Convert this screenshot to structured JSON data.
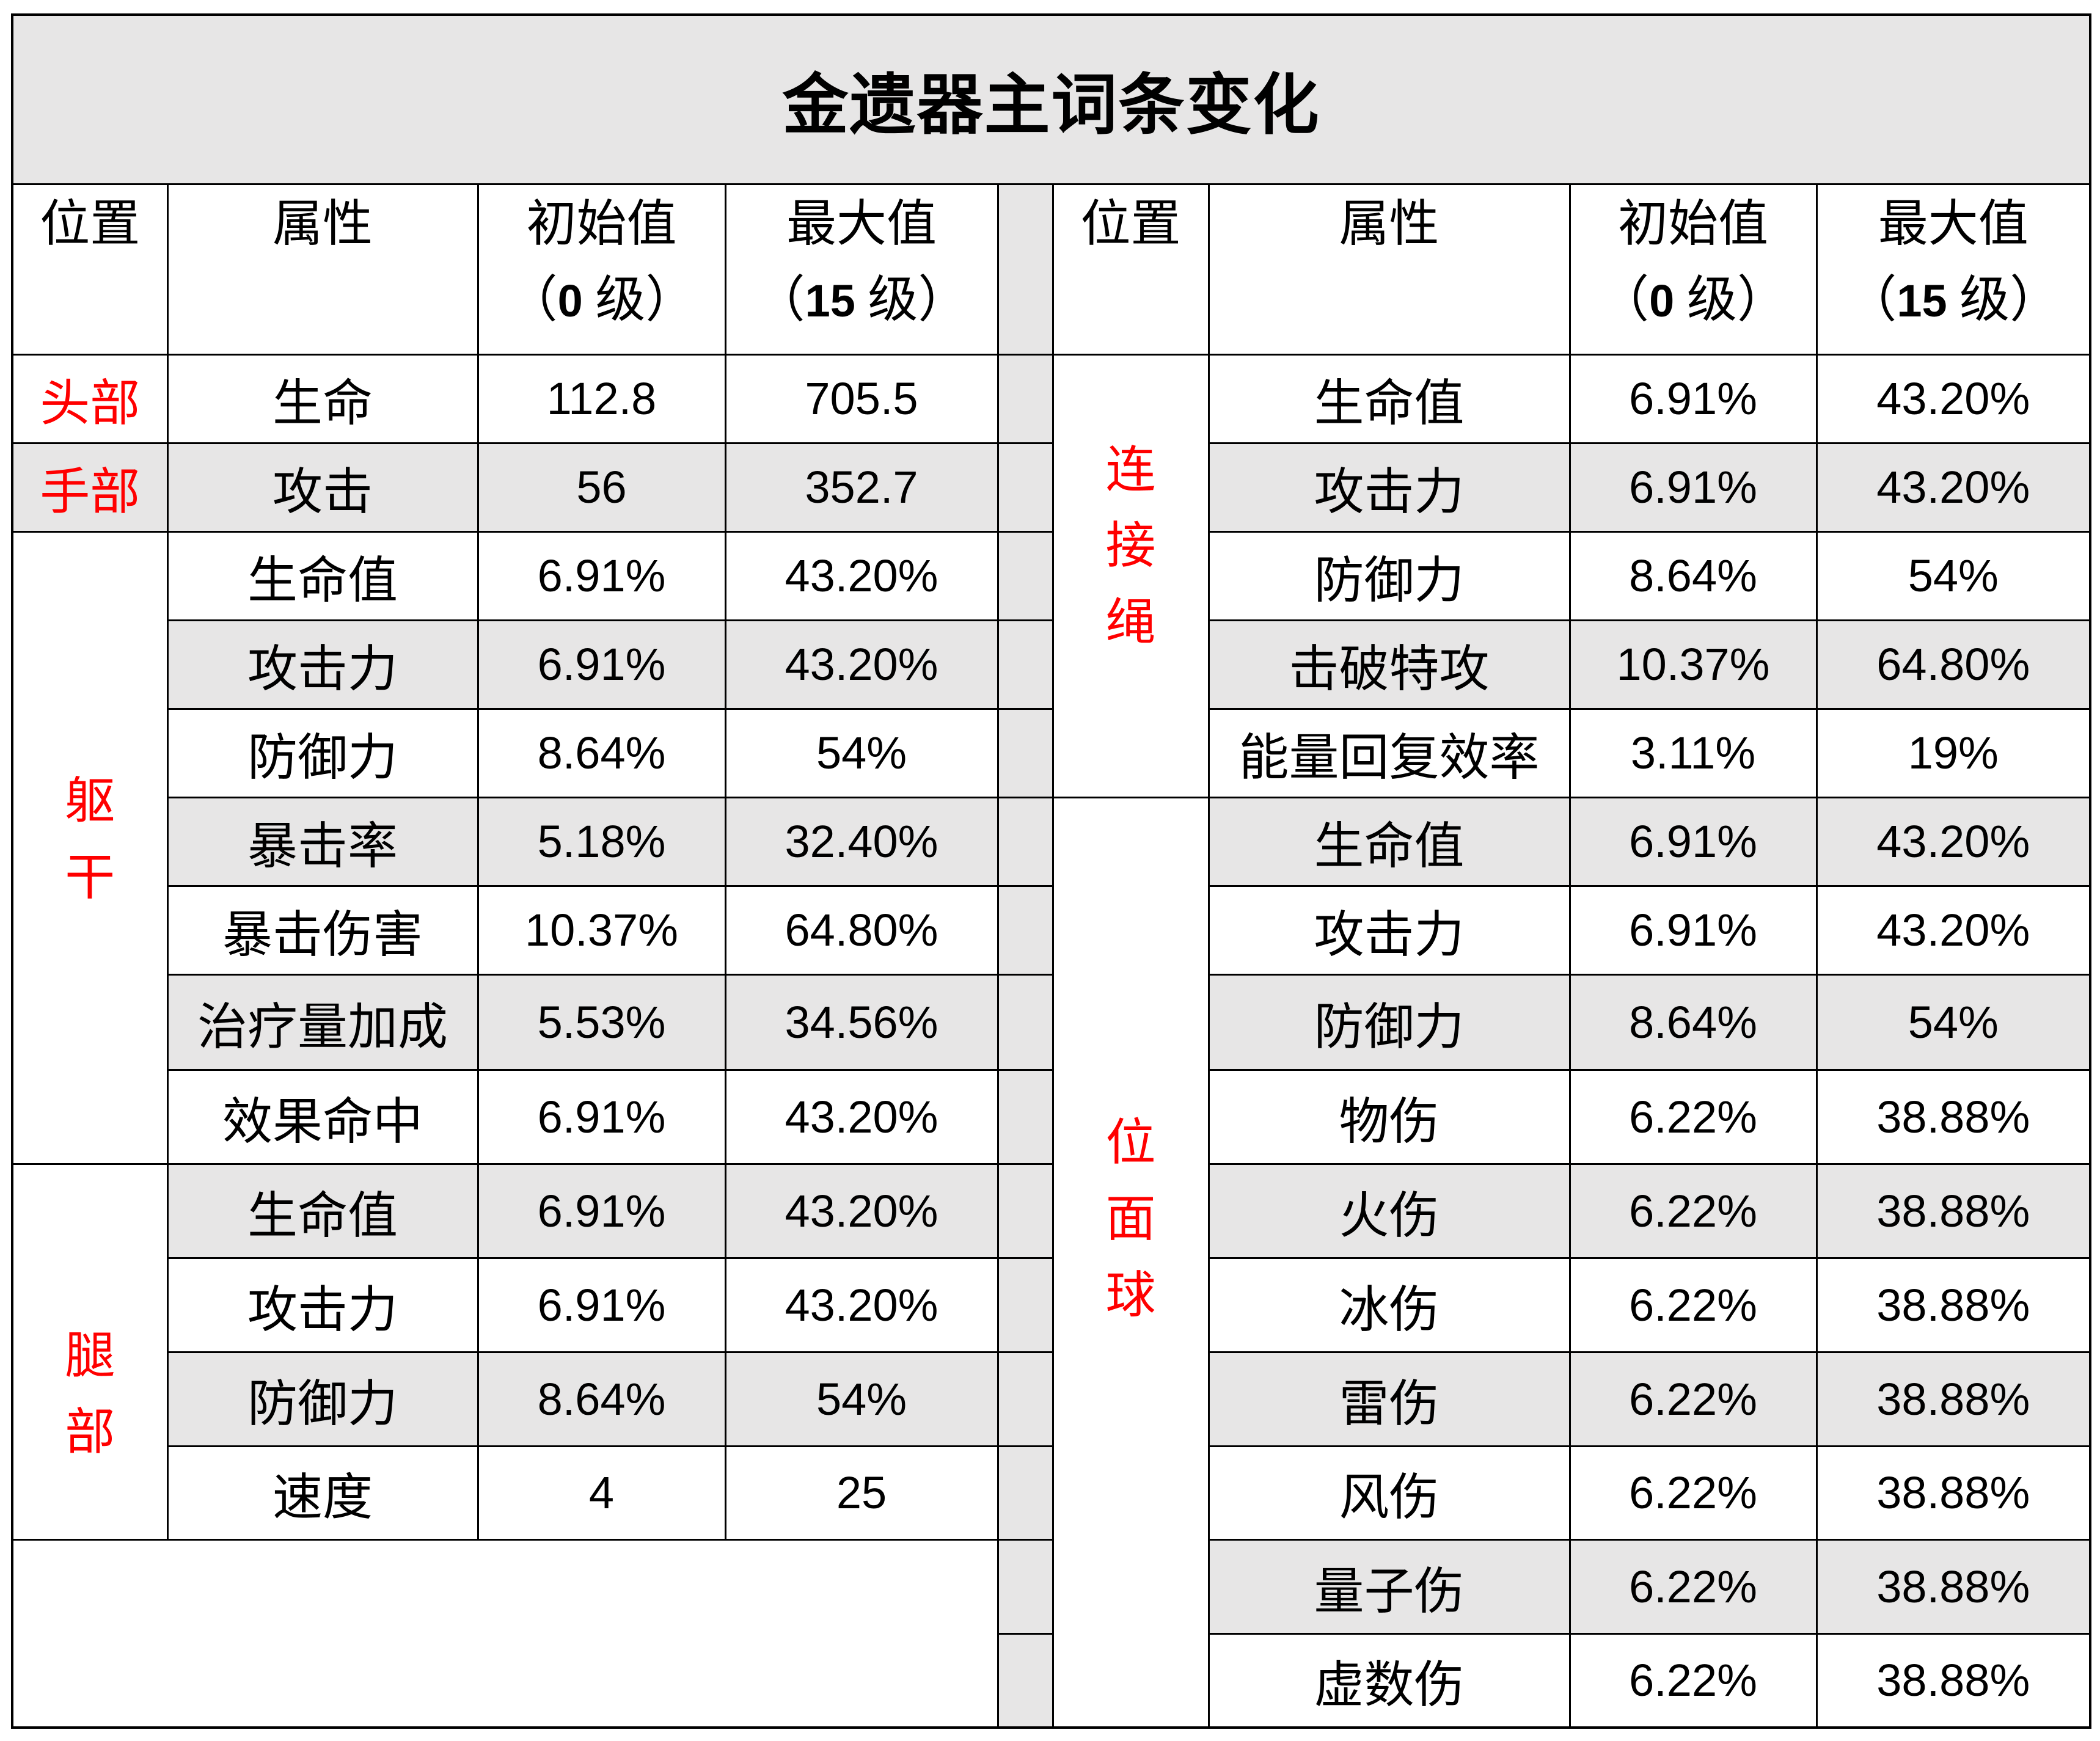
{
  "title": "金遗器主词条变化",
  "columns": {
    "position": "位置",
    "attribute": "属性",
    "initial": {
      "label": "初始值",
      "open": "（",
      "level": "0",
      "close": " 级）"
    },
    "max": {
      "label": "最大值",
      "open": "（",
      "level": "15",
      "close": " 级）"
    }
  },
  "left_groups": [
    {
      "slot": "头部",
      "rows": [
        {
          "attr": "生命",
          "initial": "112.8",
          "max": "705.5"
        }
      ]
    },
    {
      "slot": "手部",
      "rows": [
        {
          "attr": "攻击",
          "initial": "56",
          "max": "352.7"
        }
      ]
    },
    {
      "slot": "躯干",
      "rows": [
        {
          "attr": "生命值",
          "initial": "6.91%",
          "max": "43.20%"
        },
        {
          "attr": "攻击力",
          "initial": "6.91%",
          "max": "43.20%"
        },
        {
          "attr": "防御力",
          "initial": "8.64%",
          "max": "54%"
        },
        {
          "attr": "暴击率",
          "initial": "5.18%",
          "max": "32.40%"
        },
        {
          "attr": "暴击伤害",
          "initial": "10.37%",
          "max": "64.80%"
        },
        {
          "attr": "治疗量加成",
          "initial": "5.53%",
          "max": "34.56%"
        },
        {
          "attr": "效果命中",
          "initial": "6.91%",
          "max": "43.20%"
        }
      ]
    },
    {
      "slot": "腿部",
      "rows": [
        {
          "attr": "生命值",
          "initial": "6.91%",
          "max": "43.20%"
        },
        {
          "attr": "攻击力",
          "initial": "6.91%",
          "max": "43.20%"
        },
        {
          "attr": "防御力",
          "initial": "8.64%",
          "max": "54%"
        },
        {
          "attr": "速度",
          "initial": "4",
          "max": "25"
        }
      ]
    }
  ],
  "right_groups": [
    {
      "slot": "连接绳",
      "rows": [
        {
          "attr": "生命值",
          "initial": "6.91%",
          "max": "43.20%"
        },
        {
          "attr": "攻击力",
          "initial": "6.91%",
          "max": "43.20%"
        },
        {
          "attr": "防御力",
          "initial": "8.64%",
          "max": "54%"
        },
        {
          "attr": "击破特攻",
          "initial": "10.37%",
          "max": "64.80%"
        },
        {
          "attr": "能量回复效率",
          "initial": "3.11%",
          "max": "19%"
        }
      ]
    },
    {
      "slot": "位面球",
      "rows": [
        {
          "attr": "生命值",
          "initial": "6.91%",
          "max": "43.20%"
        },
        {
          "attr": "攻击力",
          "initial": "6.91%",
          "max": "43.20%"
        },
        {
          "attr": "防御力",
          "initial": "8.64%",
          "max": "54%"
        },
        {
          "attr": "物伤",
          "initial": "6.22%",
          "max": "38.88%"
        },
        {
          "attr": "火伤",
          "initial": "6.22%",
          "max": "38.88%"
        },
        {
          "attr": "冰伤",
          "initial": "6.22%",
          "max": "38.88%"
        },
        {
          "attr": "雷伤",
          "initial": "6.22%",
          "max": "38.88%"
        },
        {
          "attr": "风伤",
          "initial": "6.22%",
          "max": "38.88%"
        },
        {
          "attr": "量子伤",
          "initial": "6.22%",
          "max": "38.88%"
        },
        {
          "attr": "虚数伤",
          "initial": "6.22%",
          "max": "38.88%"
        }
      ]
    }
  ],
  "colors": {
    "slot_text": "#ff0000",
    "stripe": "#e7e6e6",
    "border": "#000000",
    "text": "#000000"
  }
}
